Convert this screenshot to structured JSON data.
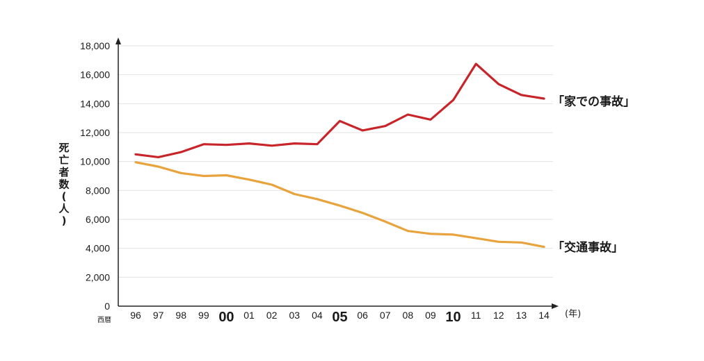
{
  "chart_data": {
    "type": "line",
    "title": "",
    "xlabel": "",
    "x_prefix_label": "西暦",
    "x_unit_label": "(年)",
    "ylabel": "死亡者数(人)",
    "ylim": [
      0,
      18000
    ],
    "grid": true,
    "categories": [
      "96",
      "97",
      "98",
      "99",
      "00",
      "01",
      "02",
      "03",
      "04",
      "05",
      "06",
      "07",
      "08",
      "09",
      "10",
      "11",
      "12",
      "13",
      "14"
    ],
    "emphasized_categories": [
      "00",
      "05",
      "10"
    ],
    "y_ticks": [
      {
        "value": 0,
        "label": "0"
      },
      {
        "value": 2000,
        "label": "2,000"
      },
      {
        "value": 4000,
        "label": "4,000"
      },
      {
        "value": 6000,
        "label": "6,000"
      },
      {
        "value": 8000,
        "label": "8,000"
      },
      {
        "value": 10000,
        "label": "10,000"
      },
      {
        "value": 12000,
        "label": "12,000"
      },
      {
        "value": 14000,
        "label": "14,000"
      },
      {
        "value": 16000,
        "label": "16,000"
      },
      {
        "value": 18000,
        "label": "18,000"
      }
    ],
    "series": [
      {
        "name": "「家での事故」",
        "color": "#c8252b",
        "values": [
          10500,
          10300,
          10650,
          11200,
          11150,
          11250,
          11100,
          11250,
          11200,
          12800,
          12150,
          12450,
          13250,
          12900,
          14250,
          16750,
          15350,
          14600,
          14350
        ]
      },
      {
        "name": "「交通事故」",
        "color": "#e8a33c",
        "values": [
          9950,
          9650,
          9200,
          9000,
          9050,
          8750,
          8400,
          7750,
          7400,
          6950,
          6450,
          5850,
          5200,
          5000,
          4950,
          4700,
          4450,
          4400,
          4100
        ]
      }
    ]
  }
}
